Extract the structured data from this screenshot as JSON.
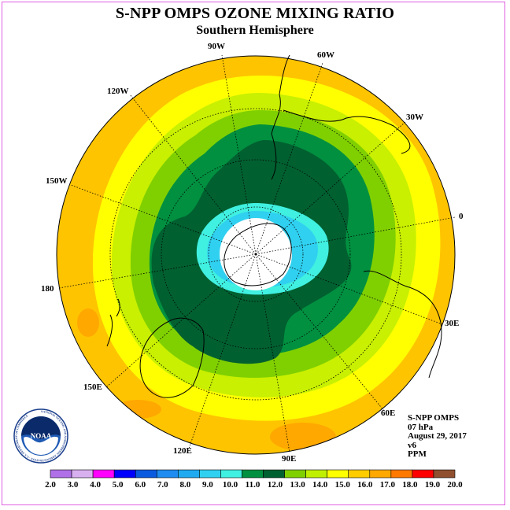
{
  "title": "S-NPP OMPS OZONE MIXING RATIO",
  "subtitle": "Southern Hemisphere",
  "info": {
    "instrument": "S-NPP OMPS",
    "level": "07 hPa",
    "date": "August 29, 2017",
    "version": "v6",
    "units": "PPM"
  },
  "longitude_labels": [
    "90W",
    "60W",
    "120W",
    "30W",
    "150W",
    "0",
    "180",
    "30E",
    "150E",
    "60E",
    "120E",
    "90E"
  ],
  "colorbar": {
    "ticks": [
      "2.0",
      "3.0",
      "4.0",
      "5.0",
      "6.0",
      "7.0",
      "8.0",
      "9.0",
      "10.0",
      "11.0",
      "12.0",
      "13.0",
      "14.0",
      "15.0",
      "16.0",
      "17.0",
      "18.0",
      "19.0",
      "20.0"
    ],
    "colors": [
      "#b070e8",
      "#d8b0f0",
      "#ff00ff",
      "#0000ff",
      "#0a5ae0",
      "#1e8cf0",
      "#20aaf0",
      "#30d0f0",
      "#40f0e0",
      "#009040",
      "#006030",
      "#80d000",
      "#c0f000",
      "#ffff00",
      "#ffcc00",
      "#ffa800",
      "#ff7800",
      "#ff0000",
      "#905030"
    ]
  },
  "map_colors": {
    "orange": "#ffc400",
    "yellow": "#ffff00",
    "yellowgreen": "#c8f000",
    "green": "#80d000",
    "darkgreen": "#006030",
    "midgreen": "#009040",
    "cyan": "#40f0e0",
    "lightblue": "#30d0f0",
    "blue": "#1e8cf0",
    "darkorange": "#ffa800"
  },
  "logo": {
    "text": "NOAA",
    "ring_text": "NATIONAL OCEANIC AND ATMOSPHERIC ADMINISTRATION · U.S. DEPARTMENT OF COMMERCE"
  }
}
